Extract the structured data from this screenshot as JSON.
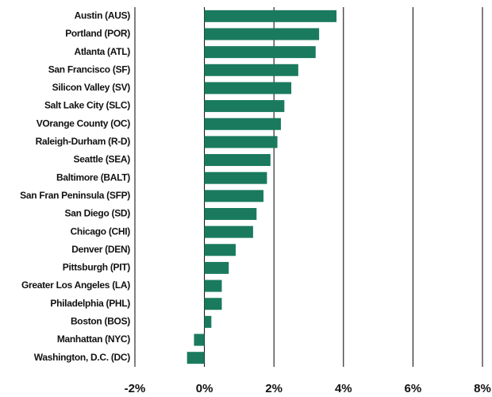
{
  "chart_data": {
    "type": "barh",
    "categories": [
      "Austin (AUS)",
      "Portland (POR)",
      "Atlanta (ATL)",
      "San Francisco (SF)",
      "Silicon Valley (SV)",
      "Salt Lake City (SLC)",
      "VOrange County (OC)",
      "Raleigh-Durham (R-D)",
      "Seattle (SEA)",
      "Baltimore (BALT)",
      "San Fran Peninsula (SFP)",
      "San Diego (SD)",
      "Chicago (CHI)",
      "Denver (DEN)",
      "Pittsburgh (PIT)",
      "Greater Los Angeles (LA)",
      "Philadelphia (PHL)",
      "Boston (BOS)",
      "Manhattan (NYC)",
      "Washington, D.C. (DC)"
    ],
    "values": [
      3.8,
      3.3,
      3.2,
      2.7,
      2.5,
      2.3,
      2.2,
      2.1,
      1.9,
      1.8,
      1.7,
      1.5,
      1.4,
      0.9,
      0.7,
      0.5,
      0.5,
      0.2,
      -0.3,
      -0.5
    ],
    "color": "#1a7a5e",
    "xlim": [
      -2,
      8
    ],
    "xticks": [
      {
        "value": -2,
        "label": "-2%"
      },
      {
        "value": 0,
        "label": "0%"
      },
      {
        "value": 2,
        "label": "2%"
      },
      {
        "value": 4,
        "label": "4%"
      },
      {
        "value": 6,
        "label": "6%"
      },
      {
        "value": 8,
        "label": "8%"
      }
    ],
    "grid": true
  }
}
